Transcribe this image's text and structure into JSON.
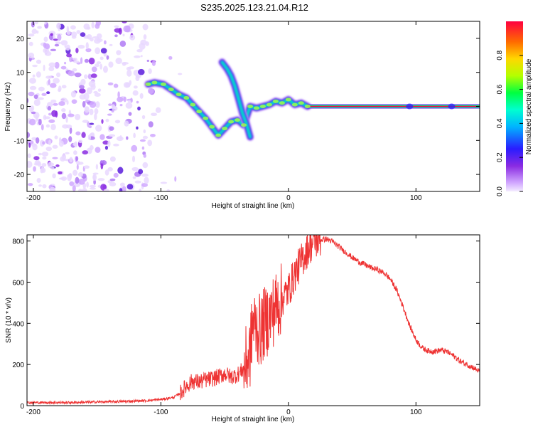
{
  "title": "S235.2025.123.21.04.R12",
  "chart_data": [
    {
      "type": "heatmap",
      "xlabel": "Height of straight line (km)",
      "ylabel": "Frequency (Hz)",
      "xlim": [
        -205,
        150
      ],
      "ylim": [
        -25,
        25
      ],
      "xticks": [
        -200,
        -100,
        0,
        100
      ],
      "yticks": [
        -20,
        -10,
        0,
        10,
        20
      ],
      "colorbar": {
        "label": "Normalized spectral amplitude",
        "range": [
          0,
          1
        ],
        "ticks": [
          0.0,
          0.2,
          0.4,
          0.6,
          0.8
        ]
      },
      "ridge": [
        {
          "x": -110,
          "y": 6.5
        },
        {
          "x": -105,
          "y": 7
        },
        {
          "x": -98,
          "y": 6.5
        },
        {
          "x": -92,
          "y": 5
        },
        {
          "x": -86,
          "y": 3.5
        },
        {
          "x": -80,
          "y": 2.5
        },
        {
          "x": -75,
          "y": 0.5
        },
        {
          "x": -70,
          "y": -1.5
        },
        {
          "x": -65,
          "y": -3.5
        },
        {
          "x": -60,
          "y": -6
        },
        {
          "x": -55,
          "y": -8.5
        },
        {
          "x": -50,
          "y": -6.5
        },
        {
          "x": -45,
          "y": -4.5
        },
        {
          "x": -40,
          "y": -4
        },
        {
          "x": -35,
          "y": -5.5
        },
        {
          "x": -30,
          "y": 0
        },
        {
          "x": -25,
          "y": -0.5
        },
        {
          "x": -20,
          "y": 0
        },
        {
          "x": -15,
          "y": 0.5
        },
        {
          "x": -10,
          "y": 1.5
        },
        {
          "x": -5,
          "y": 1
        },
        {
          "x": 0,
          "y": 2
        },
        {
          "x": 5,
          "y": 0.5
        },
        {
          "x": 10,
          "y": 1
        },
        {
          "x": 15,
          "y": 0
        },
        {
          "x": 150,
          "y": 0
        }
      ],
      "branch": [
        {
          "x": -52,
          "y": 13
        },
        {
          "x": -48,
          "y": 11
        },
        {
          "x": -45,
          "y": 9
        },
        {
          "x": -42,
          "y": 6
        },
        {
          "x": -39,
          "y": 2
        },
        {
          "x": -36,
          "y": -2
        },
        {
          "x": -33,
          "y": -5
        },
        {
          "x": -30,
          "y": -9
        }
      ]
    },
    {
      "type": "line",
      "xlabel": "Height of straight line (km)",
      "ylabel": "SNR (10 * v/v)",
      "xlim": [
        -205,
        150
      ],
      "ylim": [
        0,
        830
      ],
      "xticks": [
        -200,
        -100,
        0,
        100
      ],
      "yticks": [
        0,
        200,
        400,
        600,
        800
      ],
      "color": "#ee3333",
      "series": [
        {
          "x": [
            -205,
            -190,
            -170,
            -150,
            -130,
            -110,
            -100,
            -90,
            -85,
            -80,
            -75,
            -70,
            -65,
            -60,
            -55,
            -50,
            -45,
            -40,
            -35,
            -30,
            -28,
            -25,
            -22,
            -20,
            -15,
            -10,
            -5,
            0,
            5,
            10,
            15,
            20,
            25,
            30,
            35,
            40,
            45,
            50,
            55,
            60,
            65,
            70,
            75,
            80,
            85,
            90,
            95,
            100,
            105,
            110,
            115,
            120,
            125,
            130,
            135,
            140,
            145,
            150
          ],
          "y": [
            15,
            15,
            15,
            18,
            20,
            25,
            30,
            40,
            60,
            95,
            120,
            115,
            125,
            130,
            140,
            155,
            140,
            150,
            180,
            260,
            400,
            380,
            360,
            390,
            430,
            480,
            520,
            560,
            640,
            700,
            760,
            800,
            805,
            810,
            795,
            770,
            745,
            720,
            700,
            685,
            670,
            660,
            645,
            615,
            560,
            480,
            390,
            320,
            280,
            265,
            265,
            270,
            260,
            240,
            215,
            200,
            185,
            165
          ]
        }
      ]
    }
  ]
}
